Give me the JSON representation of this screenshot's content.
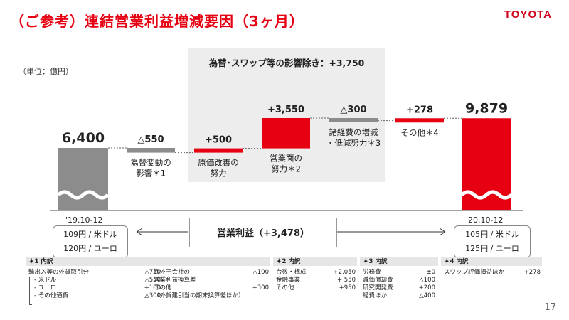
{
  "header": {
    "title": "（ご参考）連結営業利益増減要因（3ヶ月）",
    "logo": "TOYOTA",
    "unit": "（単位：億円）",
    "page_number": "17"
  },
  "fx_group": {
    "label": "為替･スワップ等の影響除き：+3,750"
  },
  "colors": {
    "grey": "#8c8c8c",
    "red": "#e60012",
    "box": "#ededed"
  },
  "chart_data": {
    "type": "bar",
    "subtype": "waterfall",
    "categories": [
      "'19.10-12",
      "為替変動の影響＊1",
      "原価改善の努力",
      "営業面の努力＊2",
      "諸経費の増減・低減努力＊3",
      "その他＊4",
      "'20.10-12"
    ],
    "values": [
      6400,
      -550,
      500,
      3550,
      -300,
      278,
      9879
    ],
    "value_labels": [
      "6,400",
      "△550",
      "+500",
      "+3,550",
      "△300",
      "+278",
      "9,879"
    ],
    "bar_kind": [
      "total",
      "delta",
      "delta",
      "delta",
      "delta",
      "delta",
      "total"
    ],
    "bar_colors": [
      "#8c8c8c",
      "#8c8c8c",
      "#e60012",
      "#e60012",
      "#8c8c8c",
      "#e60012",
      "#e60012"
    ],
    "category_lines": [
      [],
      [
        "為替変動の",
        "影響＊1"
      ],
      [
        "原価改善の",
        "努力"
      ],
      [
        "営業面の",
        "努力＊2"
      ],
      [
        "諸経費の増減",
        "・低減努力＊3"
      ],
      [
        "その他＊4"
      ],
      []
    ],
    "axis_break": true
  },
  "periods": {
    "start": {
      "label": "'19.10-12",
      "rates": [
        "109円 / 米ドル",
        "120円 / ユーロ"
      ]
    },
    "end": {
      "label": "'20.10-12",
      "rates": [
        "105円 / 米ドル",
        "125円 / ユーロ"
      ]
    }
  },
  "operating_income": {
    "label": "営業利益（+3,478）"
  },
  "notes": {
    "n1": {
      "title": "＊1 内訳",
      "left": [
        [
          "輸出入等の外貨取引分",
          "△750"
        ],
        [
          "- 米ドル",
          "△550"
        ],
        [
          "- ユーロ",
          "+100"
        ],
        [
          "- その他通貨",
          "△300"
        ]
      ],
      "right": [
        [
          "海外子会社の",
          "△100"
        ],
        [
          "営業利益換算差",
          ""
        ],
        [
          "その他",
          "+300"
        ],
        [
          "（外貨建引当の期末換算差ほか）",
          ""
        ]
      ]
    },
    "n2": {
      "title": "＊2 内訳",
      "rows": [
        [
          "台数・構成",
          "+2,050"
        ],
        [
          "金融事業",
          "+ 550"
        ],
        [
          "その他",
          "+950"
        ]
      ]
    },
    "n3": {
      "title": "＊3 内訳",
      "rows": [
        [
          "労務費",
          "±0"
        ],
        [
          "減価償却費",
          "△100"
        ],
        [
          "研究開発費",
          "+200"
        ],
        [
          "経費ほか",
          "△400"
        ]
      ]
    },
    "n4": {
      "title": "＊4 内訳",
      "rows": [
        [
          "スワップ評価損益ほか",
          "+278"
        ]
      ]
    }
  }
}
